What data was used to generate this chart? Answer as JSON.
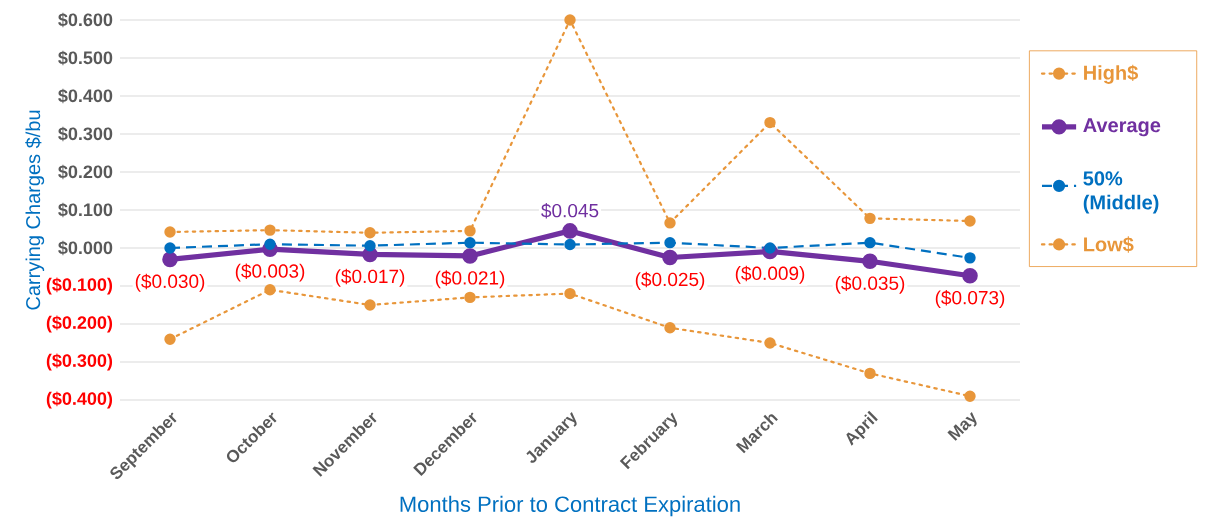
{
  "chart_data": {
    "type": "line",
    "ylabel": "Carrying Charges $/bu",
    "xlabel": "Months Prior to Contract Expiration",
    "categories": [
      "September",
      "October",
      "November",
      "December",
      "January",
      "February",
      "March",
      "April",
      "May"
    ],
    "series": [
      {
        "name": "High$",
        "color": "#e8963a",
        "line_style": "dotted",
        "values": [
          0.042,
          0.047,
          0.04,
          0.045,
          0.6,
          0.066,
          0.33,
          0.078,
          0.071
        ]
      },
      {
        "name": "Average",
        "color": "#7030a0",
        "line_style": "solid",
        "values": [
          -0.03,
          -0.003,
          -0.017,
          -0.021,
          0.045,
          -0.025,
          -0.009,
          -0.035,
          -0.073
        ],
        "value_labels": [
          "($0.030)",
          "($0.003)",
          "($0.017)",
          "($0.021)",
          "$0.045",
          "($0.025)",
          "($0.009)",
          "($0.035)",
          "($0.073)"
        ]
      },
      {
        "name": "50% (Middle)",
        "color": "#0070c0",
        "line_style": "dashed",
        "values": [
          0.0,
          0.01,
          0.006,
          0.014,
          0.009,
          0.014,
          0.0,
          0.014,
          -0.026
        ]
      },
      {
        "name": "Low$",
        "color": "#e8963a",
        "line_style": "dotted",
        "values": [
          -0.24,
          -0.11,
          -0.15,
          -0.13,
          -0.12,
          -0.21,
          -0.25,
          -0.33,
          -0.39
        ]
      }
    ],
    "ylim": [
      -0.4,
      0.6
    ],
    "yticks": [
      {
        "value": 0.6,
        "label": "$0.600"
      },
      {
        "value": 0.5,
        "label": "$0.500"
      },
      {
        "value": 0.4,
        "label": "$0.400"
      },
      {
        "value": 0.3,
        "label": "$0.300"
      },
      {
        "value": 0.2,
        "label": "$0.200"
      },
      {
        "value": 0.1,
        "label": "$0.100"
      },
      {
        "value": 0.0,
        "label": "$0.000"
      },
      {
        "value": -0.1,
        "label": "($0.100)"
      },
      {
        "value": -0.2,
        "label": "($0.200)"
      },
      {
        "value": -0.3,
        "label": "($0.300)"
      },
      {
        "value": -0.4,
        "label": "($0.400)"
      }
    ],
    "grid": "y",
    "legend": "right",
    "marker": "circle"
  }
}
